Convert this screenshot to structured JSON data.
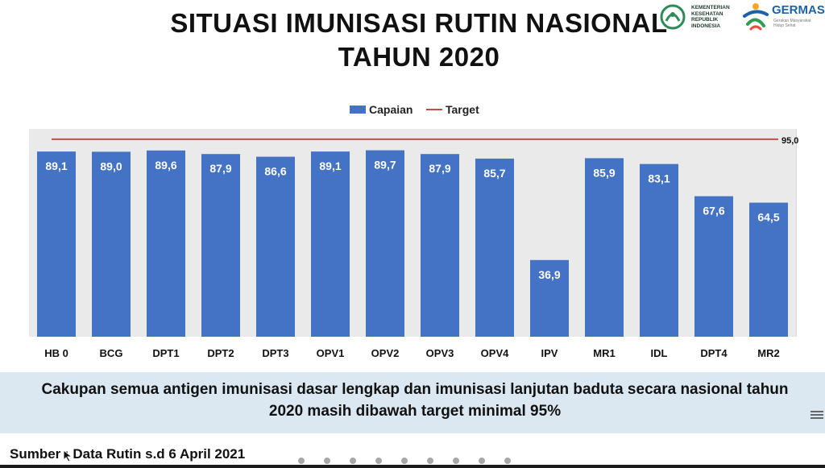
{
  "title_line1": "SITUASI IMUNISASI RUTIN NASIONAL",
  "title_line2": "TAHUN 2020",
  "logos": {
    "kemenkes": "KEMENTERIAN KESEHATAN REPUBLIK INDONESIA",
    "germas_word": "GERMAS",
    "germas_tagline": "Gerakan Masyarakat Hidup Sehat"
  },
  "summary": {
    "line1": "Cakupan semua antigen imunisasi dasar lengkap dan imunisasi lanjutan baduta secara nasional tahun",
    "line2": "2020  masih dibawah target minimal 95%"
  },
  "source": "Sumber : Data Rutin s.d 6 April 2021",
  "colors": {
    "bar": "#4472c4",
    "target": "#c0504d",
    "plot_bg": "#eaeaea",
    "summary_bg": "#dbe8f2"
  },
  "chart_data": {
    "type": "bar",
    "categories": [
      "HB 0",
      "BCG",
      "DPT1",
      "DPT2",
      "DPT3",
      "OPV1",
      "OPV2",
      "OPV3",
      "OPV4",
      "IPV",
      "MR1",
      "IDL",
      "DPT4",
      "MR2"
    ],
    "series": [
      {
        "name": "Capaian",
        "values": [
          89.1,
          89.0,
          89.6,
          87.9,
          86.6,
          89.1,
          89.7,
          87.9,
          85.7,
          36.9,
          85.9,
          83.1,
          67.6,
          64.5
        ]
      }
    ],
    "value_labels": [
      "89,1",
      "89,0",
      "89,6",
      "87,9",
      "86,6",
      "89,1",
      "89,7",
      "87,9",
      "85,7",
      "36,9",
      "85,9",
      "83,1",
      "67,6",
      "64,5"
    ],
    "target": {
      "name": "Target",
      "value": 95.0,
      "label": "95,0"
    },
    "ylim": [
      0,
      100
    ],
    "grid": false,
    "legend_position": "top-center"
  }
}
